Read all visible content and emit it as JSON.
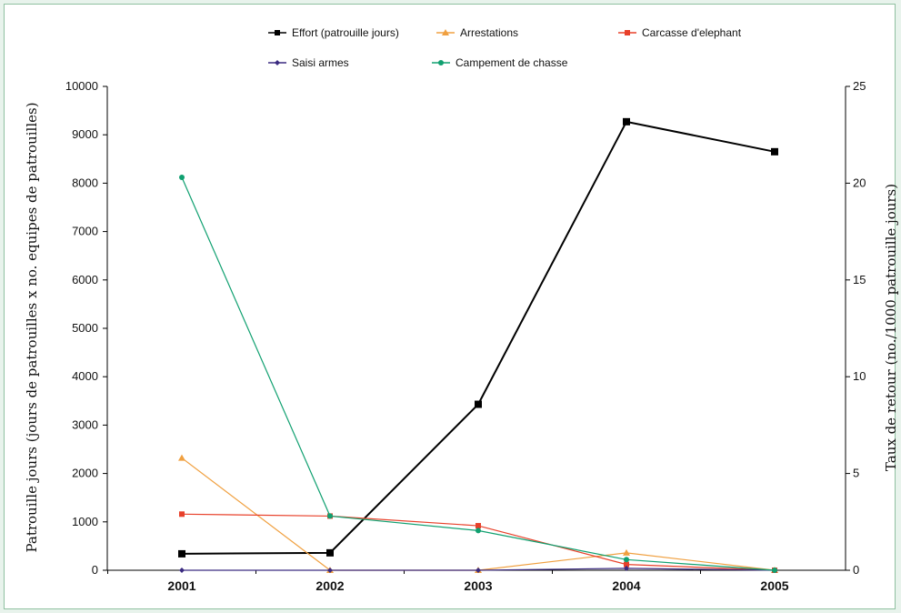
{
  "chart_data": {
    "type": "line",
    "categories": [
      "2001",
      "2002",
      "2003",
      "2004",
      "2005"
    ],
    "ylabel": "Patrouille jours (jours de patrouilles x no. equipes de patrouilles)",
    "y2label": "Taux de retour (no./1000 patrouille jours)",
    "ylim": [
      0,
      10000
    ],
    "y2lim": [
      0,
      25
    ],
    "yticks": [
      "0",
      "1000",
      "2000",
      "3000",
      "4000",
      "5000",
      "6000",
      "7000",
      "8000",
      "9000",
      "10000"
    ],
    "y2ticks": [
      "0",
      "5",
      "10",
      "15",
      "20",
      "25"
    ],
    "grid": false,
    "legend_position": "top",
    "series": [
      {
        "name": "Effort (patrouille jours)",
        "axis": "left",
        "color": "#000000",
        "marker": "square",
        "width": 2,
        "values": [
          340,
          360,
          3430,
          9270,
          8650
        ]
      },
      {
        "name": "Arrestations",
        "axis": "right",
        "color": "#f0a040",
        "marker": "triangle",
        "width": 1.2,
        "values": [
          5.8,
          0,
          0,
          0.9,
          0
        ]
      },
      {
        "name": "Carcasse d'elephant",
        "axis": "right",
        "color": "#e8402a",
        "marker": "square",
        "width": 1.2,
        "values": [
          2.9,
          2.8,
          2.3,
          0.3,
          0
        ]
      },
      {
        "name": "Saisi armes",
        "axis": "right",
        "color": "#3a2a80",
        "marker": "diamond",
        "width": 1.2,
        "values": [
          0,
          0,
          0,
          0.1,
          0
        ]
      },
      {
        "name": "Campement de chasse",
        "axis": "right",
        "color": "#10a070",
        "marker": "circle",
        "width": 1.2,
        "values": [
          20.3,
          2.8,
          2.05,
          0.55,
          0
        ]
      }
    ]
  }
}
